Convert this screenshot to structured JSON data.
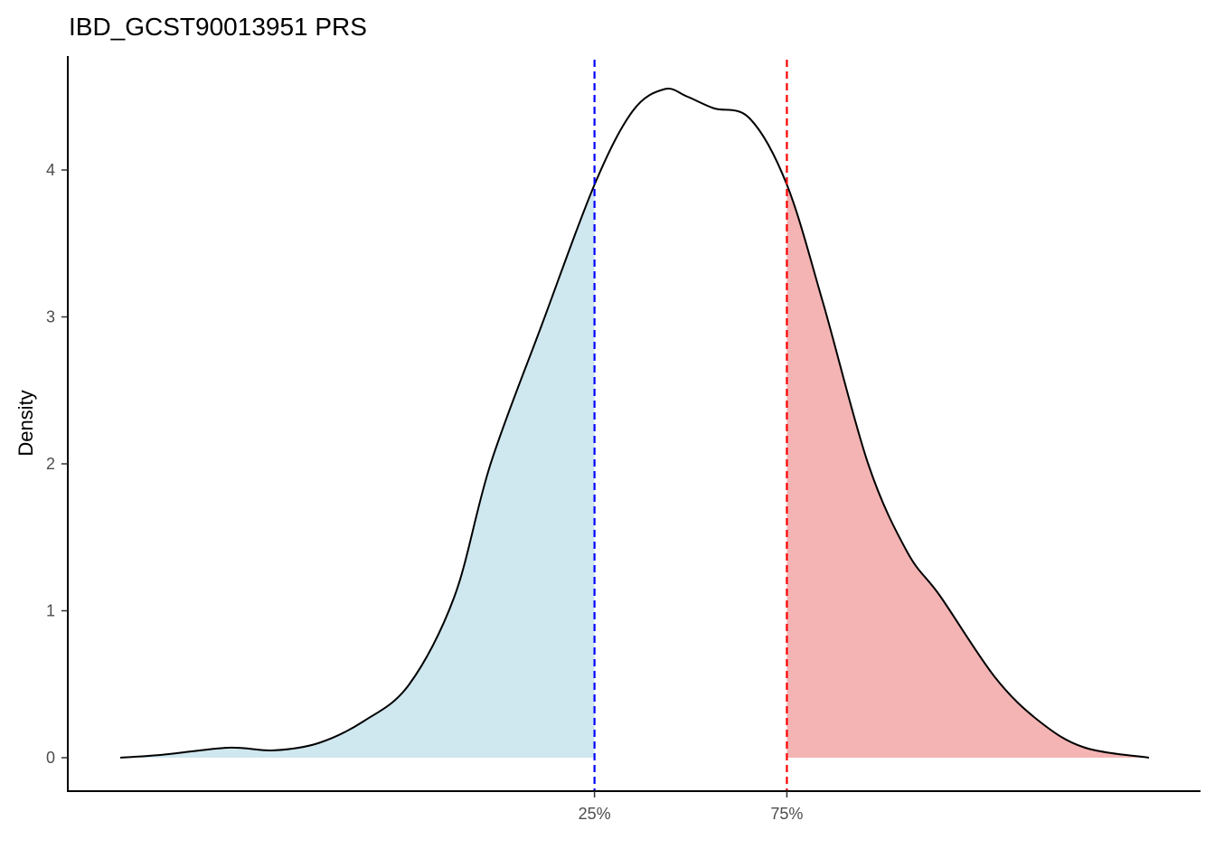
{
  "chart_data": {
    "type": "area",
    "title": "IBD_GCST90013951 PRS",
    "xlabel": "",
    "ylabel": "Density",
    "xlim": [
      0,
      1
    ],
    "ylim": [
      0,
      4.75
    ],
    "grid": false,
    "y_ticks": [
      0,
      1,
      2,
      3,
      4
    ],
    "y_tick_labels": [
      "0",
      "1",
      "2",
      "3",
      "4"
    ],
    "x_ticks": [
      {
        "value": 0.461,
        "label": "25%",
        "color": "#0000ff"
      },
      {
        "value": 0.648,
        "label": "75%",
        "color": "#ff0000"
      }
    ],
    "fills": {
      "lower": "#cfe7ef",
      "upper": "#f4b4b4"
    },
    "x": [
      0,
      0.041,
      0.105,
      0.149,
      0.193,
      0.237,
      0.281,
      0.325,
      0.36,
      0.41,
      0.461,
      0.498,
      0.529,
      0.551,
      0.577,
      0.612,
      0.648,
      0.683,
      0.727,
      0.765,
      0.797,
      0.85,
      0.893,
      0.937,
      1.0
    ],
    "density": [
      0,
      0.02,
      0.068,
      0.05,
      0.1,
      0.25,
      0.5,
      1.1,
      2.0,
      2.95,
      3.9,
      4.4,
      4.55,
      4.5,
      4.42,
      4.35,
      3.9,
      3.1,
      2.0,
      1.4,
      1.1,
      0.55,
      0.25,
      0.07,
      0
    ]
  }
}
